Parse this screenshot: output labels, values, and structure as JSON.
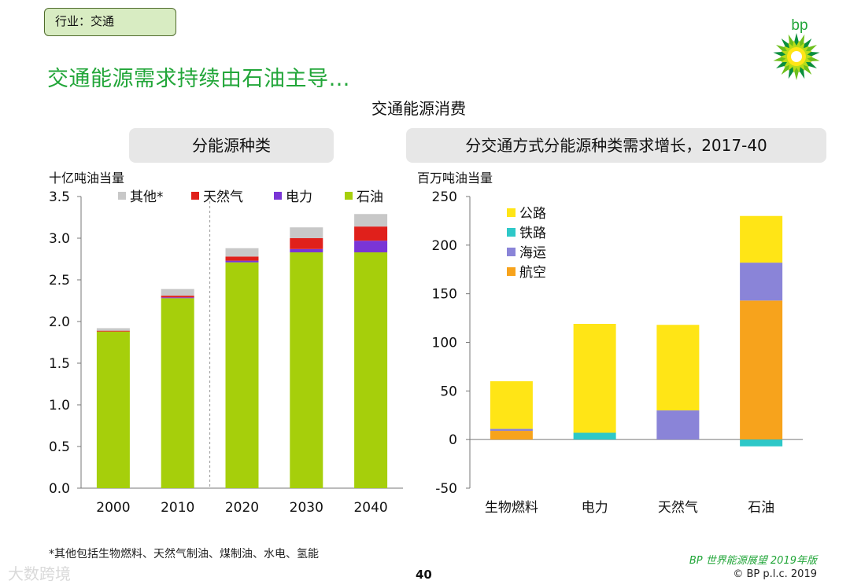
{
  "header": {
    "tag": "行业：交通",
    "title": "交通能源需求持续由石油主导…",
    "subtitle": "交通能源消费",
    "logo_text": "bp"
  },
  "footer": {
    "footnote": "*其他包括生物燃料、天然气制油、煤制油、水电、氢能",
    "source": "BP 世界能源展望 2019年版",
    "copyright": "© BP p.l.c. 2019",
    "page": "40",
    "watermark": "大数跨境"
  },
  "colors": {
    "oil": "#a6cf0b",
    "electricity": "#7a35d6",
    "gas": "#e0201b",
    "other": "#c8c8c8",
    "road": "#ffe516",
    "rail": "#2ec8c8",
    "marine": "#8a84d8",
    "aviation": "#f7a31c",
    "title_green": "#22a639"
  },
  "chart_data": [
    {
      "type": "bar",
      "stacked": true,
      "panel_title": "分能源种类",
      "ylabel": "十亿吨油当量",
      "categories": [
        "2000",
        "2010",
        "2020",
        "2030",
        "2040"
      ],
      "ylim": [
        0,
        3.5
      ],
      "yticks": [
        "0.0",
        "0.5",
        "1.0",
        "1.5",
        "2.0",
        "2.5",
        "3.0",
        "3.5"
      ],
      "legend_position": "top",
      "divider_after_category": "2010",
      "series": [
        {
          "name": "石油",
          "color_key": "oil",
          "values": [
            1.88,
            2.28,
            2.71,
            2.83,
            2.83
          ]
        },
        {
          "name": "电力",
          "color_key": "electricity",
          "values": [
            0.0,
            0.01,
            0.02,
            0.04,
            0.14
          ]
        },
        {
          "name": "天然气",
          "color_key": "gas",
          "values": [
            0.01,
            0.02,
            0.05,
            0.13,
            0.17
          ]
        },
        {
          "name": "其他*",
          "color_key": "other",
          "values": [
            0.03,
            0.08,
            0.1,
            0.13,
            0.15
          ]
        }
      ],
      "legend_order": [
        "其他*",
        "天然气",
        "电力",
        "石油"
      ]
    },
    {
      "type": "bar",
      "stacked": true,
      "panel_title": "分交通方式分能源种类需求增长，2017-40",
      "ylabel": "百万吨油当量",
      "categories": [
        "生物燃料",
        "电力",
        "天然气",
        "石油"
      ],
      "ylim": [
        -50,
        250
      ],
      "yticks": [
        "-50",
        "0",
        "50",
        "100",
        "150",
        "200",
        "250"
      ],
      "legend_position": "top-left",
      "series": [
        {
          "name": "航空",
          "color_key": "aviation",
          "values": [
            9,
            0,
            0,
            143
          ]
        },
        {
          "name": "海运",
          "color_key": "marine",
          "values": [
            2,
            0,
            30,
            39
          ]
        },
        {
          "name": "铁路",
          "color_key": "rail",
          "values": [
            0,
            7,
            0,
            -7
          ]
        },
        {
          "name": "公路",
          "color_key": "road",
          "values": [
            49,
            112,
            88,
            48
          ]
        }
      ],
      "legend_order": [
        "公路",
        "铁路",
        "海运",
        "航空"
      ]
    }
  ]
}
